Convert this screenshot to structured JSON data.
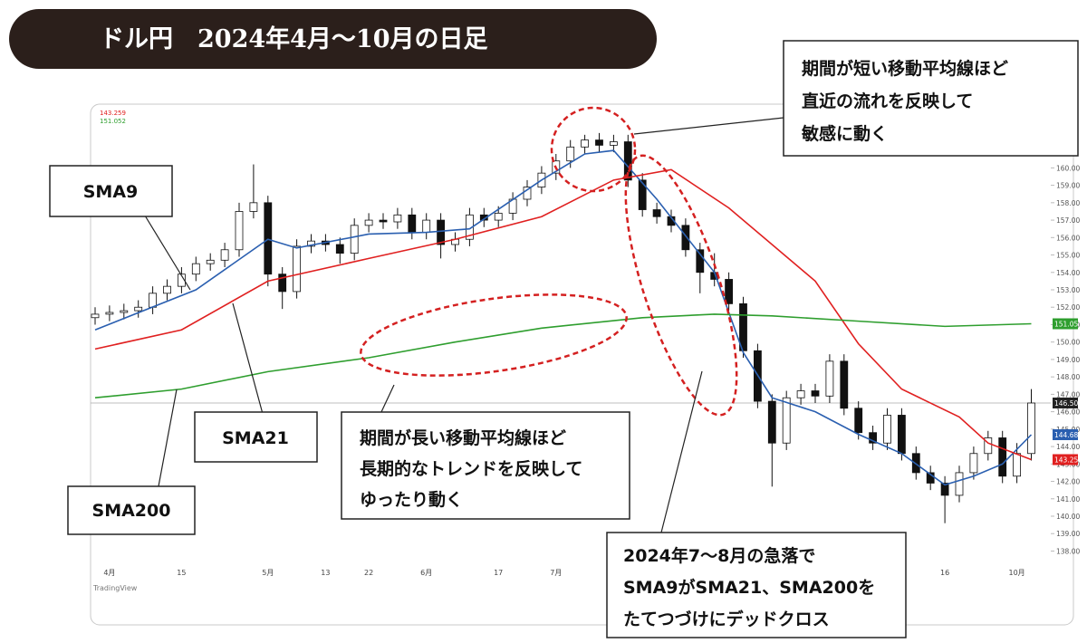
{
  "header": {
    "title": "ドル円　2024年4月～10月の日足"
  },
  "chart_data": {
    "type": "candlestick",
    "categories": [
      null,
      "4月",
      null,
      null,
      null,
      null,
      "15",
      null,
      null,
      null,
      null,
      null,
      "5月",
      null,
      null,
      null,
      "13",
      null,
      null,
      "22",
      null,
      null,
      null,
      "6月",
      null,
      null,
      null,
      null,
      "17",
      null,
      null,
      null,
      "7月",
      null,
      null,
      null,
      null,
      null,
      null,
      null,
      null,
      null,
      null,
      null,
      null,
      null,
      null,
      null,
      null,
      null,
      null,
      null,
      null,
      null,
      null,
      null,
      null,
      null,
      null,
      "16",
      null,
      null,
      null,
      null,
      "10月",
      null
    ],
    "open": [
      151.4,
      151.6,
      151.7,
      151.8,
      152.0,
      152.8,
      153.2,
      153.9,
      154.5,
      154.7,
      155.3,
      157.5,
      158.0,
      153.9,
      152.9,
      155.5,
      155.8,
      155.6,
      155.1,
      156.7,
      157.0,
      156.9,
      157.3,
      156.3,
      157.0,
      155.6,
      155.9,
      157.3,
      157.0,
      157.4,
      158.2,
      158.9,
      159.7,
      160.4,
      161.2,
      161.6,
      161.3,
      161.5,
      159.3,
      157.6,
      157.2,
      156.7,
      155.3,
      154.0,
      153.6,
      152.2,
      149.5,
      146.6,
      144.2,
      146.8,
      147.2,
      146.9,
      148.9,
      146.2,
      144.8,
      144.2,
      145.8,
      143.6,
      142.5,
      141.9,
      141.2,
      142.5,
      143.6,
      144.5,
      142.3,
      143.6
    ],
    "high": [
      152.0,
      152.1,
      152.2,
      152.4,
      153.2,
      153.6,
      154.3,
      154.9,
      155.1,
      155.7,
      158.0,
      160.2,
      158.4,
      154.3,
      155.9,
      156.2,
      156.2,
      156.0,
      157.1,
      157.4,
      157.4,
      157.7,
      157.7,
      157.4,
      157.4,
      156.3,
      157.7,
      157.7,
      157.8,
      158.6,
      159.3,
      160.1,
      160.8,
      161.6,
      161.9,
      162.0,
      161.9,
      161.9,
      159.7,
      158.0,
      157.6,
      157.1,
      155.7,
      155.1,
      154.0,
      152.6,
      149.9,
      147.0,
      147.2,
      147.6,
      147.6,
      149.3,
      149.3,
      146.6,
      145.2,
      146.2,
      146.2,
      144.0,
      142.9,
      142.3,
      142.9,
      144.0,
      144.9,
      144.9,
      144.2,
      147.3
    ],
    "low": [
      151.0,
      151.2,
      151.3,
      151.4,
      151.6,
      152.4,
      152.8,
      153.5,
      154.1,
      154.3,
      154.9,
      157.1,
      153.2,
      151.9,
      152.5,
      155.1,
      155.2,
      154.5,
      154.7,
      156.3,
      156.5,
      156.5,
      155.9,
      155.9,
      154.8,
      155.2,
      155.5,
      156.6,
      156.6,
      157.0,
      157.8,
      158.5,
      159.3,
      160.0,
      160.8,
      160.9,
      160.9,
      158.9,
      157.2,
      156.8,
      156.3,
      154.9,
      152.8,
      153.2,
      151.8,
      149.1,
      146.2,
      141.7,
      143.8,
      146.4,
      146.5,
      146.5,
      145.8,
      144.4,
      143.8,
      143.8,
      143.2,
      142.1,
      141.5,
      139.6,
      140.8,
      142.1,
      143.2,
      141.9,
      141.9,
      143.2
    ],
    "close": [
      151.6,
      151.7,
      151.8,
      152.0,
      152.8,
      153.2,
      153.9,
      154.5,
      154.7,
      155.3,
      157.5,
      158.0,
      153.9,
      152.9,
      155.5,
      155.8,
      155.6,
      155.1,
      156.7,
      157.0,
      156.9,
      157.3,
      156.3,
      157.0,
      155.6,
      155.9,
      157.3,
      157.0,
      157.4,
      158.2,
      158.9,
      159.7,
      160.4,
      161.2,
      161.6,
      161.3,
      161.5,
      159.3,
      157.6,
      157.2,
      156.7,
      155.3,
      154.0,
      153.6,
      152.2,
      149.5,
      146.6,
      144.2,
      146.8,
      147.2,
      146.9,
      148.9,
      146.2,
      144.8,
      144.2,
      145.8,
      143.6,
      142.5,
      141.9,
      141.2,
      142.5,
      143.6,
      144.5,
      142.3,
      143.6,
      146.5
    ],
    "up_color": "#ffffff",
    "down_color": "#111111",
    "lines": [
      {
        "color": "#2a5fb0",
        "x": [
          0,
          7,
          12,
          14,
          19,
          23,
          26,
          31,
          34,
          36,
          39,
          43,
          45,
          47,
          50,
          53,
          56,
          59,
          61,
          63,
          65
        ],
        "values": [
          150.7,
          153.0,
          155.9,
          155.4,
          156.2,
          156.3,
          156.5,
          159.3,
          160.8,
          161.0,
          158.2,
          154.0,
          149.4,
          146.8,
          146.0,
          144.7,
          143.6,
          141.8,
          142.3,
          143.0,
          144.68
        ]
      },
      {
        "color": "#e02020",
        "x": [
          0,
          6,
          12,
          19,
          25,
          31,
          36,
          40,
          44,
          50,
          53,
          56,
          60,
          62,
          65
        ],
        "values": [
          149.6,
          150.7,
          153.5,
          154.8,
          155.9,
          157.2,
          159.3,
          159.9,
          157.7,
          153.5,
          149.9,
          147.3,
          145.7,
          144.2,
          143.25
        ]
      },
      {
        "color": "#2e9e2e",
        "x": [
          0,
          6,
          12,
          19,
          25,
          31,
          38,
          43,
          47,
          53,
          59,
          65
        ],
        "values": [
          146.8,
          147.3,
          148.3,
          149.1,
          150.0,
          150.8,
          151.4,
          151.6,
          151.5,
          151.2,
          150.9,
          151.05
        ]
      }
    ],
    "legend_values": [
      {
        "value": 143.259,
        "color": "#e02020"
      },
      {
        "value": 151.052,
        "color": "#2e9e2e"
      }
    ],
    "price_labels": [
      {
        "value": 151.05,
        "color": "#2e9e2e"
      },
      {
        "value": 146.5,
        "label": "146.50",
        "color": "#222222",
        "price_line": true
      },
      {
        "value": 144.68,
        "color": "#2a5fb0"
      },
      {
        "value": 143.25,
        "color": "#e02020"
      }
    ],
    "ylim": [
      137.4,
      163.4
    ],
    "yticks": [
      {
        "value": 138,
        "label": "138.00"
      },
      {
        "value": 139,
        "label": "139.00"
      },
      {
        "value": 140,
        "label": "140.00"
      },
      {
        "value": 141,
        "label": "141.00"
      },
      {
        "value": 142,
        "label": "142.00"
      },
      {
        "value": 143,
        "label": "143.00"
      },
      {
        "value": 144,
        "label": "144.00"
      },
      {
        "value": 145,
        "label": "145.00"
      },
      {
        "value": 146,
        "label": "146.00"
      },
      {
        "value": 147,
        "label": "147.00"
      },
      {
        "value": 148,
        "label": "148.00"
      },
      {
        "value": 149,
        "label": "149.00"
      },
      {
        "value": 150,
        "label": "150.00"
      },
      {
        "value": 151,
        "label": "151.00"
      },
      {
        "value": 152,
        "label": "152.00"
      },
      {
        "value": 153,
        "label": "153.00"
      },
      {
        "value": 154,
        "label": "154.00"
      },
      {
        "value": 155,
        "label": "155.00"
      },
      {
        "value": 156,
        "label": "156.00"
      },
      {
        "value": 157,
        "label": "157.00"
      },
      {
        "value": 158,
        "label": "158.00"
      },
      {
        "value": 159,
        "label": "159.00"
      },
      {
        "value": 160,
        "label": "160.00"
      }
    ],
    "watermark": "TradingView"
  },
  "annotations": {
    "short_note": [
      "期間が短い移動平均線ほど",
      "直近の流れを反映して",
      "敏感に動く"
    ],
    "sma9": "SMA9",
    "sma21": "SMA21",
    "sma200": "SMA200",
    "long_note": [
      "期間が長い移動平均線ほど",
      "長期的なトレンドを反映して",
      "ゆったり動く"
    ],
    "crash_note": [
      "2024年7～8月の急落で",
      "SMA9がSMA21、SMA200を",
      "たてつづけにデッドクロス"
    ]
  }
}
